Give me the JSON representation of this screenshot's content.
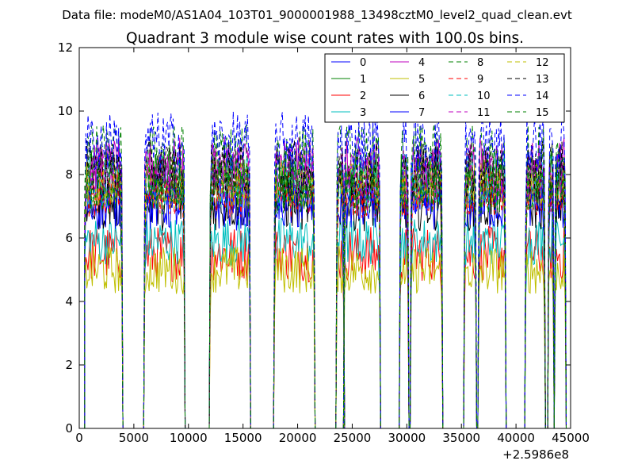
{
  "chart_data": {
    "type": "line",
    "suptitle": "Data file: modeM0/AS1A04_103T01_9000001988_13498cztM0_level2_quad_clean.evt",
    "title": "Quadrant 3 module wise count rates with 100.0s bins.",
    "xlabel": "",
    "ylabel": "",
    "x_offset_label": "+2.5986e8",
    "xlim": [
      0,
      45000
    ],
    "ylim": [
      0,
      12
    ],
    "xticks": [
      0,
      5000,
      10000,
      15000,
      20000,
      25000,
      30000,
      35000,
      40000,
      45000
    ],
    "yticks": [
      0,
      2,
      4,
      6,
      8,
      10,
      12
    ],
    "bin_size_s": 100,
    "grid": false,
    "legend_position": "top-right",
    "legend_columns": 4,
    "active_intervals": [
      [
        500,
        3900
      ],
      [
        6000,
        9600
      ],
      [
        12000,
        15600
      ],
      [
        17900,
        21500
      ],
      [
        23600,
        24200
      ],
      [
        24300,
        27500
      ],
      [
        29400,
        30100
      ],
      [
        30400,
        33200
      ],
      [
        35300,
        36300
      ],
      [
        36600,
        39000
      ],
      [
        40900,
        42600
      ],
      [
        43000,
        43400
      ],
      [
        43600,
        44500
      ]
    ],
    "series": [
      {
        "name": "0",
        "color": "#0000ff",
        "dash": "solid",
        "level": 7.5,
        "spread": 0.35
      },
      {
        "name": "1",
        "color": "#008000",
        "dash": "solid",
        "level": 7.9,
        "spread": 0.4
      },
      {
        "name": "2",
        "color": "#ff0000",
        "dash": "solid",
        "level": 5.5,
        "spread": 0.4
      },
      {
        "name": "3",
        "color": "#00bfbf",
        "dash": "solid",
        "level": 5.9,
        "spread": 0.35
      },
      {
        "name": "4",
        "color": "#bf00bf",
        "dash": "solid",
        "level": 8.3,
        "spread": 0.4
      },
      {
        "name": "5",
        "color": "#bfbf00",
        "dash": "solid",
        "level": 5.0,
        "spread": 0.35
      },
      {
        "name": "6",
        "color": "#000000",
        "dash": "solid",
        "level": 7.1,
        "spread": 0.4
      },
      {
        "name": "7",
        "color": "#0000ff",
        "dash": "solid",
        "level": 7.0,
        "spread": 0.35
      },
      {
        "name": "8",
        "color": "#008000",
        "dash": "dashed",
        "level": 8.6,
        "spread": 0.45
      },
      {
        "name": "9",
        "color": "#ff0000",
        "dash": "dashed",
        "level": 7.4,
        "spread": 0.35
      },
      {
        "name": "10",
        "color": "#00bfbf",
        "dash": "dashed",
        "level": 7.8,
        "spread": 0.4
      },
      {
        "name": "11",
        "color": "#bf00bf",
        "dash": "dashed",
        "level": 8.0,
        "spread": 0.4
      },
      {
        "name": "12",
        "color": "#bfbf00",
        "dash": "dashed",
        "level": 7.7,
        "spread": 0.35
      },
      {
        "name": "13",
        "color": "#000000",
        "dash": "dashed",
        "level": 8.2,
        "spread": 0.4
      },
      {
        "name": "14",
        "color": "#0000ff",
        "dash": "dashed",
        "level": 9.0,
        "spread": 0.45
      },
      {
        "name": "15",
        "color": "#008000",
        "dash": "dashed",
        "level": 7.6,
        "spread": 0.4
      }
    ]
  }
}
